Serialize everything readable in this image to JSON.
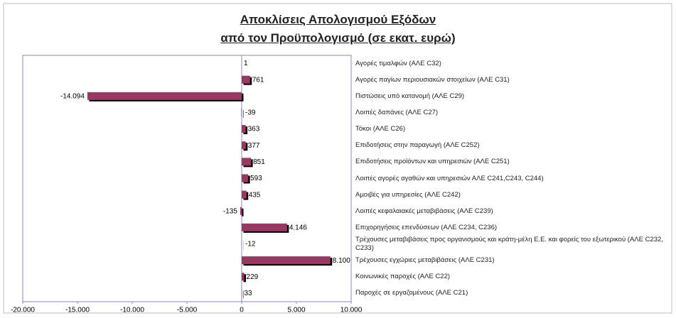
{
  "chart_data": {
    "type": "barh",
    "title": [
      "Αποκλίσεις Απολογισμού Εξόδων",
      "από τον Προϋπολογισμό (σε εκατ. ευρώ)"
    ],
    "categories": [
      "Αγορές τιμαλφών (ΑΛΕ C32)",
      "Αγορές παγίων περιουσιακών στοιχείων (ΑΛΕ C31)",
      "Πιστώσεις υπό κατανομή (ΑΛΕ C29)",
      "Λοιπές δαπάνες (ΑΛΕ C27)",
      "Τόκοι (ΑΛΕ C26)",
      "Επιδοτήσεις στην παραγωγή (ΑΛΕ C252)",
      "Επιδοτήσεις προϊόντων και υπηρεσιών (ΑΛΕ C251)",
      "Λοιπές αγορές αγαθών και υπηρεσιών ΑΛΕ C241,C243, C244)",
      "Αμοιβές για υπηρεσίες (ΑΛΕ C242)",
      "Λοιπές κεφαλαιακές μεταβιβάσεις (ΑΛΕ C239)",
      "Επιχορηγήσεις επενδύσεων (ΑΛΕ C234, C236)",
      "Τρέχουσες μεταβιβάσεις προς οργανισμούς και κράτη-μέλη Ε.Ε. και φορείς του εξωτερικού (ΑΛΕ C232, C233)",
      "Τρέχουσες εγχώριες μεταβιβάσεις (ΑΛΕ C231)",
      "Κοινωνικές παροχές (ΑΛΕ C22)",
      "Παροχές σε εργαζομένους (ΑΛΕ C21)"
    ],
    "values": [
      1,
      761,
      -14094,
      -39,
      363,
      377,
      851,
      593,
      435,
      -135,
      4146,
      -12,
      8100,
      229,
      33
    ],
    "value_labels": [
      "1",
      "761",
      "-14.094",
      "-39",
      "363",
      "377",
      "851",
      "593",
      "435",
      "-135",
      "4.146",
      "-12",
      "8.100",
      "229",
      "33"
    ],
    "color": "#953b63",
    "xlim": [
      -20000,
      10000
    ],
    "xticks": [
      {
        "value": -20000,
        "label": "-20.000"
      },
      {
        "value": -15000,
        "label": "-15.000"
      },
      {
        "value": -10000,
        "label": "-10.000"
      },
      {
        "value": -5000,
        "label": "-5.000"
      },
      0,
      {
        "value": 5000,
        "label": "5.000"
      },
      {
        "value": 10000,
        "label": "10.000"
      }
    ]
  }
}
